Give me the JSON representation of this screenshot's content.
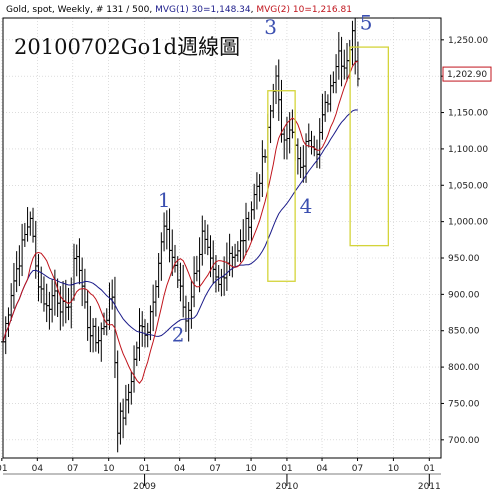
{
  "header": {
    "symbol": "Gold, spot",
    "period": "Weekly",
    "bars": "# 131 / 500",
    "mvg1": "MVG(1) 30=1,148.34",
    "mvg2": "MVG(2) 10=1,216.81"
  },
  "chart_data": {
    "type": "candlestick",
    "title": "20100702Go1d週線圖",
    "last_price_label": "1,202.90",
    "last_price": 1202.9,
    "ylim": [
      675,
      1280
    ],
    "y_ticks": [
      700,
      750,
      800,
      850,
      900,
      950,
      1000,
      1050,
      1100,
      1150,
      1200,
      1250
    ],
    "y_tick_labels": [
      "700.00",
      "750.00",
      "800.00",
      "850.00",
      "900.00",
      "950.00",
      "1,000.00",
      "1,050.00",
      "1,100.00",
      "1,150.00",
      "1,200.00",
      "1,250.00"
    ],
    "x_start": "2008-01-04",
    "x_end": "2011-01-31",
    "x_tick_labels": [
      "01",
      "04",
      "07",
      "10",
      "01",
      "04",
      "07",
      "10",
      "01",
      "04",
      "07",
      "10",
      "01"
    ],
    "x_tick_dates": [
      "2008-01-01",
      "2008-04-01",
      "2008-07-01",
      "2008-10-01",
      "2009-01-01",
      "2009-04-01",
      "2009-07-01",
      "2009-10-01",
      "2010-01-01",
      "2010-04-01",
      "2010-07-01",
      "2010-10-01",
      "2011-01-01"
    ],
    "year_labels": [
      {
        "label": "2009",
        "date": "2009-01-01"
      },
      {
        "label": "2010",
        "date": "2010-01-01"
      },
      {
        "label": "2011",
        "date": "2011-01-01"
      }
    ],
    "anchors": [
      [
        "2008-01-04",
        835
      ],
      [
        "2008-01-25",
        905
      ],
      [
        "2008-03-14",
        1010
      ],
      [
        "2008-03-28",
        935
      ],
      [
        "2008-04-25",
        880
      ],
      [
        "2008-05-16",
        905
      ],
      [
        "2008-06-13",
        870
      ],
      [
        "2008-07-11",
        960
      ],
      [
        "2008-08-08",
        860
      ],
      [
        "2008-08-29",
        835
      ],
      [
        "2008-09-19",
        860
      ],
      [
        "2008-10-10",
        900
      ],
      [
        "2008-10-24",
        720
      ],
      [
        "2008-11-14",
        745
      ],
      [
        "2008-12-19",
        850
      ],
      [
        "2009-01-09",
        855
      ],
      [
        "2009-02-20",
        990
      ],
      [
        "2009-03-20",
        940
      ],
      [
        "2009-04-17",
        865
      ],
      [
        "2009-05-29",
        980
      ],
      [
        "2009-06-26",
        925
      ],
      [
        "2009-07-10",
        910
      ],
      [
        "2009-08-07",
        960
      ],
      [
        "2009-08-28",
        955
      ],
      [
        "2009-09-25",
        1005
      ],
      [
        "2009-10-16",
        1050
      ],
      [
        "2009-11-06",
        1090
      ],
      [
        "2009-12-04",
        1210
      ],
      [
        "2009-12-18",
        1110
      ],
      [
        "2010-01-08",
        1135
      ],
      [
        "2010-02-05",
        1065
      ],
      [
        "2010-02-26",
        1120
      ],
      [
        "2010-03-19",
        1105
      ],
      [
        "2010-04-09",
        1155
      ],
      [
        "2010-05-14",
        1235
      ],
      [
        "2010-05-28",
        1215
      ],
      [
        "2010-06-18",
        1255
      ],
      [
        "2010-07-02",
        1205
      ]
    ],
    "series": [
      {
        "name": "MVG(1) 30",
        "color": "#1c1c8a"
      },
      {
        "name": "MVG(2) 10",
        "color": "#c0141c"
      }
    ],
    "annotations": [
      {
        "text": "1",
        "date": "2009-02-20",
        "y": 1020
      },
      {
        "text": "2",
        "date": "2009-03-28",
        "y": 835
      },
      {
        "text": "3",
        "date": "2009-11-20",
        "y": 1258
      },
      {
        "text": "4",
        "date": "2010-02-19",
        "y": 1012
      },
      {
        "text": "5",
        "date": "2010-07-23",
        "y": 1264
      }
    ],
    "boxes": [
      {
        "date_from": "2009-11-13",
        "date_to": "2010-01-22",
        "y_top": 1180,
        "y_bottom": 918
      },
      {
        "date_from": "2010-06-12",
        "date_to": "2010-09-18",
        "y_top": 1240,
        "y_bottom": 967
      }
    ]
  },
  "colors": {
    "bars": "#000000",
    "box": "#d4d43a",
    "wave_labels": "#3b4fb0",
    "grid": "#c8c8c8",
    "last_price": "#c0141c",
    "mvg1": "#1c1c8a",
    "mvg2": "#c0141c"
  }
}
